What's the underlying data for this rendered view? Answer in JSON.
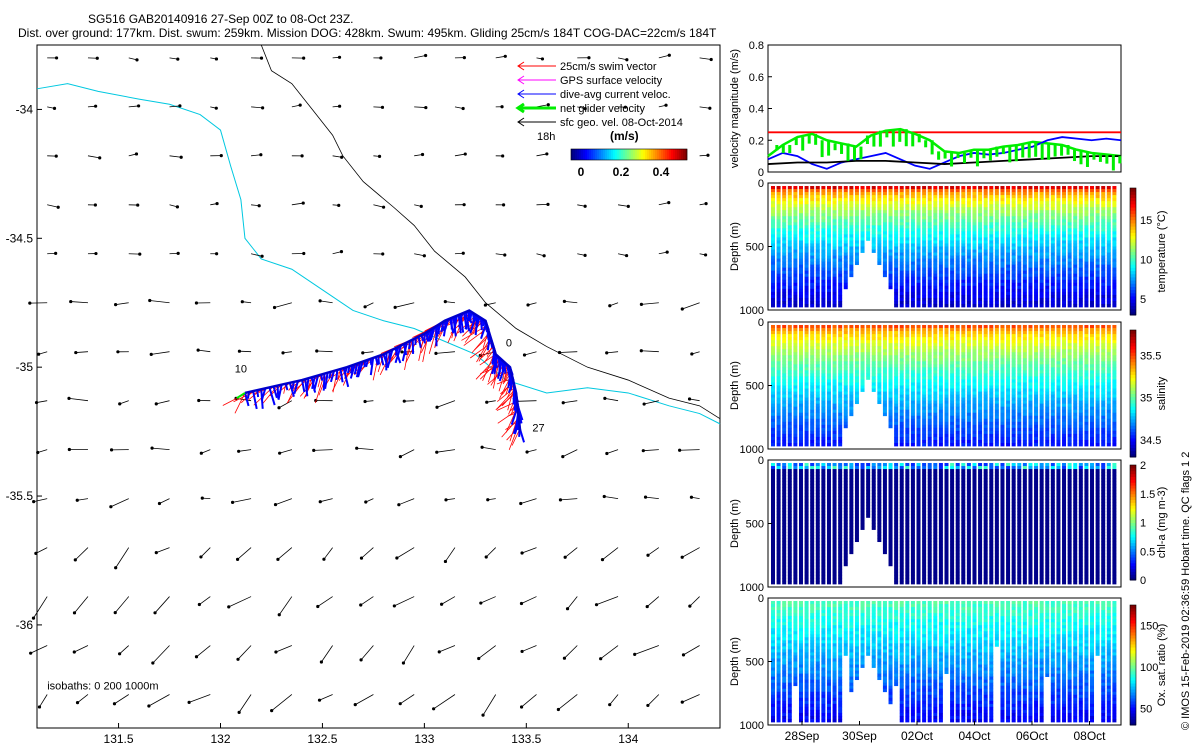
{
  "header": {
    "title_line1": "SG516 GAB20140916 27-Sep 00Z to 08-Oct 23Z.",
    "title_line2": "Dist. over ground: 177km. Dist. swum: 259km. Mission DOG: 428km. Swum: 495km. Gliding 25cm/s 184T COG-DAC=22cm/s 184T"
  },
  "side_text": "© IMOS 15-Feb-2019 02:36:59 Hobart time. QC flags 1  2",
  "colors": {
    "swim": "#ff0000",
    "gps": "#ff00ff",
    "dac": "#0000ff",
    "net": "#00ee00",
    "sfc": "#000000",
    "coast": "#00c8e0",
    "isobath": "#000000"
  },
  "chart_data": [
    {
      "type": "scatter",
      "name_ref": "map",
      "xlim": [
        131.1,
        134.45
      ],
      "ylim": [
        -36.4,
        -33.75
      ],
      "xticks": [
        "131.5",
        "132",
        "132.5",
        "133",
        "133.5",
        "134"
      ],
      "xtick_values": [
        131.5,
        132,
        132.5,
        133,
        133.5,
        134
      ],
      "yticks": [
        "-34",
        "-34.5",
        "-35",
        "-35.5",
        "-36"
      ],
      "ytick_values": [
        -34,
        -34.5,
        -35,
        -35.5,
        -36
      ],
      "legend": {
        "entries": [
          "25cm/s swim vector",
          "GPS surface velocity",
          "dive-avg current veloc.",
          "net glider velocity",
          "sfc geo. vel. 08-Oct-2014"
        ],
        "time_label": "18h",
        "colorbar_label": "(m/s)",
        "colorbar_ticks": [
          "0",
          "0.2",
          "0.4"
        ]
      },
      "isobaths_label": "isobaths: 0   200   1000m",
      "track_labels": [
        {
          "text": "10",
          "lon": 132.07,
          "lat": -35.02
        },
        {
          "text": "0",
          "lon": 133.4,
          "lat": -34.92
        },
        {
          "text": "27",
          "lon": 133.53,
          "lat": -35.25
        }
      ],
      "track": [
        [
          132.12,
          -35.1
        ],
        [
          132.4,
          -35.05
        ],
        [
          132.62,
          -35.0
        ],
        [
          132.8,
          -34.95
        ],
        [
          133.0,
          -34.87
        ],
        [
          133.1,
          -34.82
        ],
        [
          133.22,
          -34.78
        ],
        [
          133.3,
          -34.82
        ],
        [
          133.35,
          -34.95
        ],
        [
          133.42,
          -35.0
        ],
        [
          133.45,
          -35.1
        ],
        [
          133.47,
          -35.25
        ]
      ]
    },
    {
      "type": "line",
      "name_ref": "velocity",
      "ylabel": "velocity magnitude (m/s)",
      "ylim": [
        0,
        0.8
      ],
      "yticks": [
        "0",
        "0.2",
        "0.4",
        "0.6",
        "0.8"
      ],
      "xlim_days": [
        0,
        12
      ],
      "series": [
        {
          "color": "#ff0000",
          "x": [
            0,
            12
          ],
          "y": [
            0.25,
            0.25
          ]
        },
        {
          "color": "#00ee00",
          "x": [
            0,
            0.5,
            1,
            1.5,
            2,
            2.5,
            3,
            3.5,
            4,
            4.5,
            5,
            5.5,
            6,
            6.5,
            7,
            7.5,
            8,
            8.5,
            9,
            9.5,
            10,
            10.5,
            11,
            11.5,
            12
          ],
          "y": [
            0.1,
            0.17,
            0.22,
            0.24,
            0.2,
            0.18,
            0.16,
            0.23,
            0.26,
            0.27,
            0.24,
            0.2,
            0.13,
            0.12,
            0.14,
            0.14,
            0.16,
            0.17,
            0.19,
            0.18,
            0.17,
            0.14,
            0.12,
            0.11,
            0.1
          ]
        },
        {
          "color": "#0000ff",
          "x": [
            0,
            0.5,
            1,
            1.5,
            2,
            2.5,
            3,
            3.5,
            4,
            4.5,
            5,
            5.5,
            6,
            6.5,
            7,
            7.5,
            8,
            8.5,
            9,
            9.5,
            10,
            10.5,
            11,
            11.5,
            12
          ],
          "y": [
            0.08,
            0.12,
            0.1,
            0.05,
            0.02,
            0.06,
            0.08,
            0.1,
            0.12,
            0.08,
            0.04,
            0.02,
            0.06,
            0.1,
            0.12,
            0.11,
            0.12,
            0.14,
            0.16,
            0.2,
            0.22,
            0.21,
            0.2,
            0.21,
            0.2
          ]
        },
        {
          "color": "#000000",
          "x": [
            0,
            1,
            2,
            3,
            4,
            5,
            6,
            7,
            8,
            9,
            10,
            11,
            12
          ],
          "y": [
            0.05,
            0.06,
            0.06,
            0.07,
            0.07,
            0.06,
            0.05,
            0.06,
            0.07,
            0.08,
            0.09,
            0.1,
            0.1
          ]
        }
      ]
    },
    {
      "type": "heatmap",
      "name_ref": "temperature",
      "ylabel": "Depth (m)",
      "clabel": "temperature (°C)",
      "cticks": [
        "5",
        "10",
        "15"
      ],
      "ctick_values": [
        5,
        10,
        15
      ],
      "clim": [
        3,
        19
      ],
      "yticks": [
        "0",
        "500",
        "1000"
      ],
      "surface_value": 17.5,
      "deep_value": 4
    },
    {
      "type": "heatmap",
      "name_ref": "salinity",
      "ylabel": "Depth (m)",
      "clabel": "salinity",
      "cticks": [
        "34.5",
        "35",
        "35.5"
      ],
      "ctick_values": [
        34.5,
        35,
        35.5
      ],
      "clim": [
        34.3,
        35.8
      ],
      "yticks": [
        "0",
        "500",
        "1000"
      ],
      "surface_value": 35.5,
      "deep_value": 34.5
    },
    {
      "type": "heatmap",
      "name_ref": "chla",
      "ylabel": "Depth (m)",
      "clabel": "chl-a (mg m-3)",
      "cticks": [
        "0",
        "0.5",
        "1",
        "1.5",
        "2"
      ],
      "ctick_values": [
        0,
        0.5,
        1,
        1.5,
        2
      ],
      "clim": [
        0,
        2
      ],
      "yticks": [
        "0",
        "500",
        "1000"
      ],
      "surface_value": 0.6,
      "deep_value": 0
    },
    {
      "type": "heatmap",
      "name_ref": "oxygen",
      "ylabel": "Depth (m)",
      "clabel": "Ox. sat. ratio (%)",
      "cticks": [
        "50",
        "100",
        "150"
      ],
      "ctick_values": [
        50,
        100,
        150
      ],
      "clim": [
        30,
        175
      ],
      "yticks": [
        "0",
        "500",
        "1000"
      ],
      "surface_value": 95,
      "deep_value": 45,
      "xticks": [
        "28Sep",
        "30Sep",
        "02Oct",
        "04Oct",
        "06Oct",
        "08Oct"
      ]
    }
  ]
}
